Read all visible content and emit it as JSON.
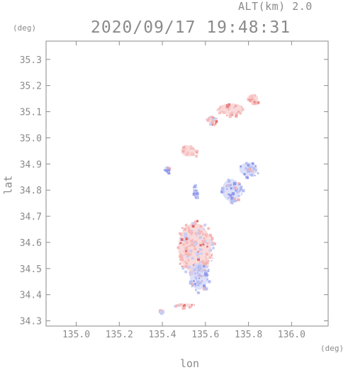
{
  "header": {
    "altitude_label": "ALT(km) 2.0",
    "timestamp": "2020/09/17 19:48:31"
  },
  "chart_data": {
    "type": "heatmap",
    "title": "2020/09/17 19:48:31",
    "subtitle": "ALT(km) 2.0",
    "xlabel": "lon",
    "ylabel": "lat",
    "x_unit": "(deg)",
    "y_unit": "(deg)",
    "xlim": [
      134.86,
      136.17
    ],
    "ylim": [
      34.28,
      35.37
    ],
    "x_ticks": [
      135.0,
      135.2,
      135.4,
      135.6,
      135.8,
      136.0
    ],
    "x_tick_labels": [
      "135.0",
      "135.2",
      "135.4",
      "135.6",
      "135.8",
      "136.0"
    ],
    "y_ticks": [
      34.3,
      34.4,
      34.5,
      34.6,
      34.7,
      34.8,
      34.9,
      35.0,
      35.1,
      35.2,
      35.3
    ],
    "y_tick_labels": [
      "34.3",
      "34.4",
      "34.5",
      "34.6",
      "34.7",
      "34.8",
      "34.9",
      "35.0",
      "35.1",
      "35.2",
      "35.3"
    ],
    "grid": false,
    "colors": {
      "positive": "#f0a8a8",
      "negative": "#a8b0f0",
      "axis": "#8a8a8a"
    },
    "regions": [
      {
        "lon": 135.72,
        "lat": 35.11,
        "rx": 0.07,
        "ry": 0.025,
        "value": 0.6
      },
      {
        "lon": 135.82,
        "lat": 35.15,
        "rx": 0.03,
        "ry": 0.02,
        "value": 0.5
      },
      {
        "lon": 135.63,
        "lat": 35.07,
        "rx": 0.03,
        "ry": 0.015,
        "value": 0.4
      },
      {
        "lon": 135.52,
        "lat": 34.95,
        "rx": 0.04,
        "ry": 0.025,
        "value": 0.5
      },
      {
        "lon": 135.42,
        "lat": 34.88,
        "rx": 0.015,
        "ry": 0.012,
        "value": -0.3
      },
      {
        "lon": 135.8,
        "lat": 34.88,
        "rx": 0.05,
        "ry": 0.03,
        "value": -0.2
      },
      {
        "lon": 135.72,
        "lat": 34.8,
        "rx": 0.05,
        "ry": 0.05,
        "value": -0.1
      },
      {
        "lon": 135.55,
        "lat": 34.58,
        "rx": 0.09,
        "ry": 0.11,
        "value": 0.1
      },
      {
        "lon": 135.57,
        "lat": 34.47,
        "rx": 0.05,
        "ry": 0.06,
        "value": -0.2
      },
      {
        "lon": 135.5,
        "lat": 34.36,
        "rx": 0.05,
        "ry": 0.008,
        "value": 0.3
      },
      {
        "lon": 135.39,
        "lat": 34.34,
        "rx": 0.008,
        "ry": 0.006,
        "value": 0.4
      },
      {
        "lon": 135.55,
        "lat": 34.8,
        "rx": 0.01,
        "ry": 0.03,
        "value": -0.5
      }
    ]
  }
}
